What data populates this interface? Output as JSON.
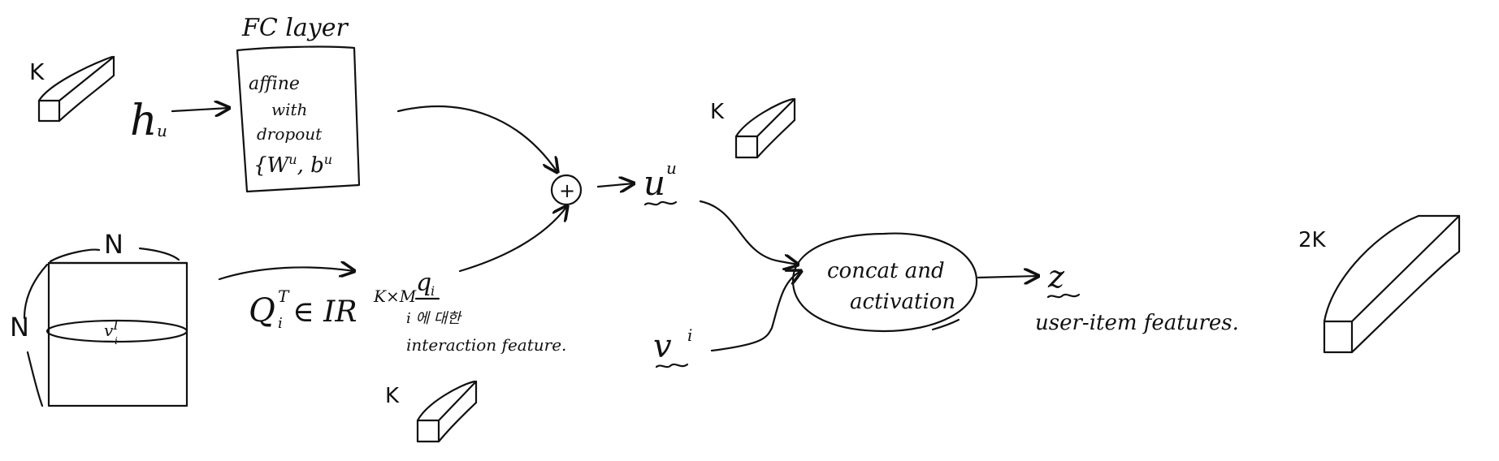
{
  "labels": {
    "k_top_left": "K",
    "h_u": "h",
    "h_u_sub": "u",
    "fc_title": "FC layer",
    "fc_line1": "affine",
    "fc_line2": "with",
    "fc_line3": "dropout",
    "fc_line4": "{W",
    "fc_line4_sup": "u",
    "fc_line4_mid": ", b",
    "fc_line4_sup2": "u",
    "plus": "+",
    "u_u": "u",
    "u_u_sup": "u",
    "k_mid_top": "K",
    "n_top": "N",
    "n_left": "N",
    "v_i_I": "v",
    "v_i_I_sub": "i",
    "v_i_I_sup": "I",
    "q_eq_Q": "Q",
    "q_eq_sub": "i",
    "q_eq_sup": "T",
    "q_eq_in": "∈ IR",
    "q_eq_dim": "K×M",
    "q_i": "q",
    "q_i_sub": "i",
    "q_desc1": "i 에 대한",
    "q_desc2": "interaction feature.",
    "k_bottom": "K",
    "v_i": "v",
    "v_i_sup": "i",
    "concat_line1": "concat and",
    "concat_line2": "activation",
    "z": "z",
    "z_desc": "user-item features.",
    "k_right": "2K"
  }
}
